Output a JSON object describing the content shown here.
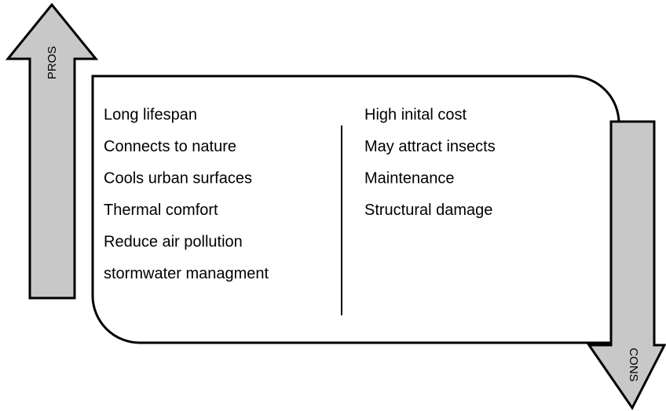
{
  "pros": {
    "label": "PROS",
    "items": [
      "Long lifespan",
      "Connects to nature",
      "Cools urban surfaces",
      "Thermal comfort",
      "Reduce air pollution",
      "stormwater managment"
    ]
  },
  "cons": {
    "label": "CONS",
    "items": [
      "High inital cost",
      "May attract insects",
      "Maintenance",
      "Structural damage"
    ]
  }
}
